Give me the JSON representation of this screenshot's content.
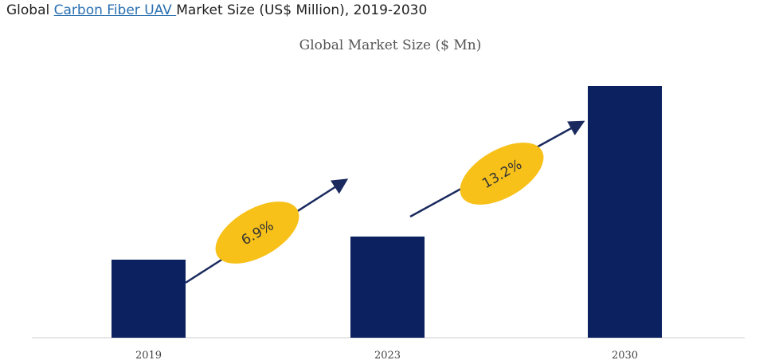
{
  "header": {
    "prefix": "Global ",
    "link": "Carbon Fiber UAV ",
    "suffix": "Market Size (US$ Million), 2019-2030"
  },
  "chart_data": {
    "type": "bar",
    "title": "Global Market Size ($ Mn)",
    "categories": [
      "2019",
      "2023",
      "2030"
    ],
    "values": [
      98,
      127,
      316
    ],
    "value_note": "relative units, no y-axis shown",
    "ylim": [
      0,
      330
    ],
    "xlabel": "",
    "ylabel": "",
    "annotations": [
      {
        "label": "6.9%",
        "from": "2019",
        "to": "2023"
      },
      {
        "label": "13.2%",
        "from": "2023",
        "to": "2030"
      }
    ],
    "colors": {
      "bar": "#0c2160",
      "badge": "#f7c11a",
      "arrow": "#1a2a5e"
    }
  }
}
